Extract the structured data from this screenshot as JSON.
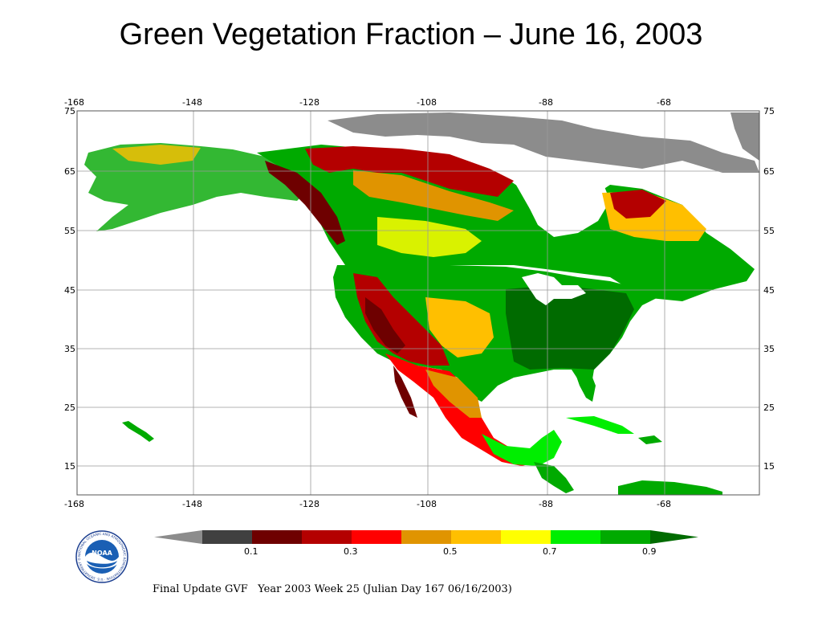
{
  "slide": {
    "title": "Green Vegetation Fraction – June 16, 2003"
  },
  "map": {
    "region": "North America",
    "lon_ticks": [
      "-168",
      "-148",
      "-128",
      "-108",
      "-88",
      "-68"
    ],
    "lat_ticks": [
      "75",
      "65",
      "55",
      "45",
      "35",
      "25",
      "15"
    ],
    "lon_range": [
      -168,
      -51
    ],
    "lat_range": [
      10,
      75
    ],
    "grid": true
  },
  "colorbar": {
    "colors": [
      "#8c8c8c",
      "#404040",
      "#6e0000",
      "#b40000",
      "#ff0000",
      "#e09400",
      "#ffbf00",
      "#ffff00",
      "#00ee00",
      "#00aa00",
      "#006b00"
    ],
    "labels": [
      "0.1",
      "0.3",
      "0.5",
      "0.7",
      "0.9"
    ]
  },
  "logo": {
    "name": "NOAA",
    "ring_text": "NATIONAL OCEANIC AND ATMOSPHERIC ADMINISTRATION · U.S. DEPARTMENT OF COMMERCE"
  },
  "footer": {
    "text": "Final Update GVF   Year 2003 Week 25 (Julian Day 167 06/16/2003)"
  }
}
